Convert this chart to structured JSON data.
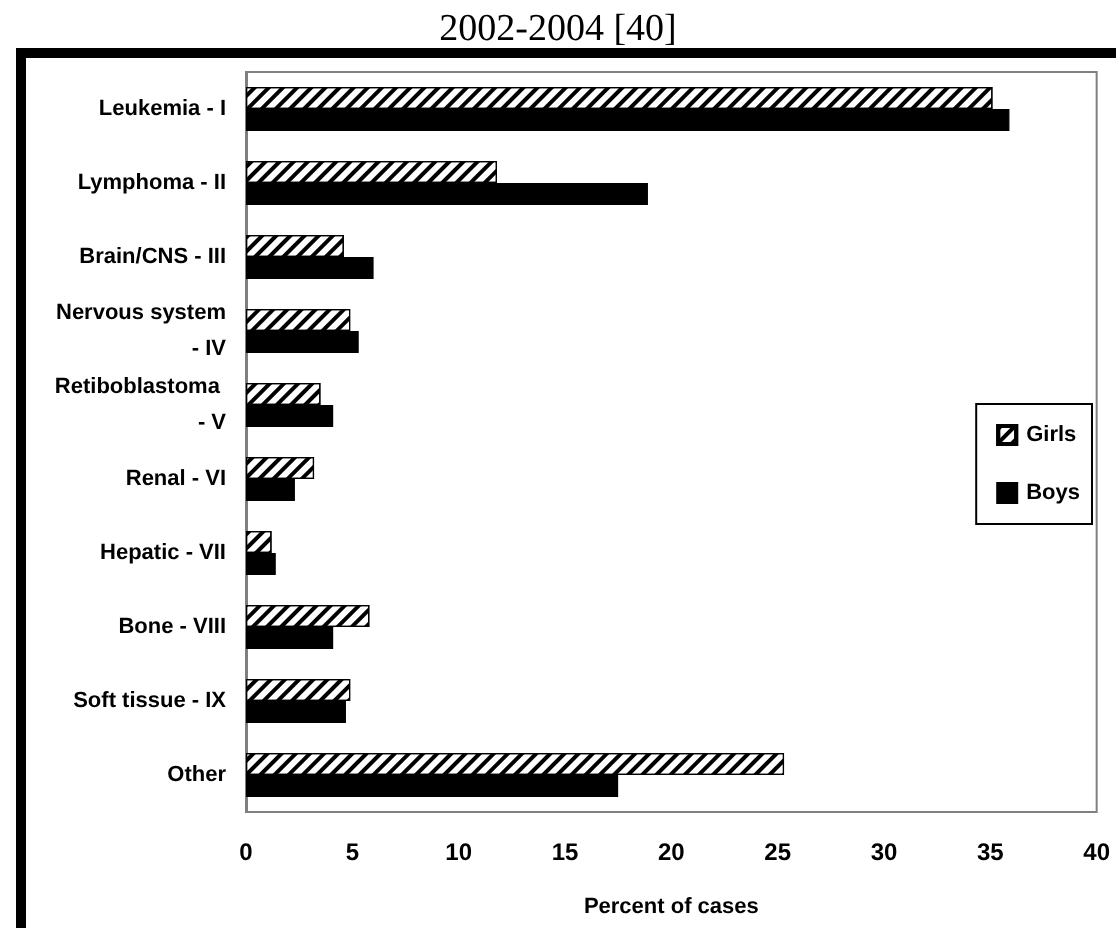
{
  "chart_data": {
    "type": "bar",
    "orientation": "horizontal",
    "title": "2002-2004 [40]",
    "xlabel": "Percent of cases",
    "categories": [
      "Leukemia - I",
      "Lymphoma - II",
      "Brain/CNS - III",
      "Nervous system - IV",
      "Retiboblastoma - V",
      "Renal - VI",
      "Hepatic - VII",
      "Bone - VIII",
      "Soft tissue - IX",
      "Other"
    ],
    "series": [
      {
        "name": "Girls",
        "color": "#ffffff",
        "values": [
          35.1,
          11.8,
          4.6,
          4.9,
          3.5,
          3.2,
          1.2,
          5.8,
          4.9,
          25.3
        ]
      },
      {
        "name": "Boys",
        "color": "#000000",
        "values": [
          35.9,
          18.9,
          6.0,
          5.3,
          4.1,
          2.3,
          1.4,
          4.1,
          4.7,
          17.5
        ]
      }
    ],
    "xlim": [
      0,
      40
    ],
    "xticks": [
      0,
      5,
      10,
      15,
      20,
      25,
      30,
      35,
      40
    ],
    "grid": false,
    "legend": "right"
  }
}
